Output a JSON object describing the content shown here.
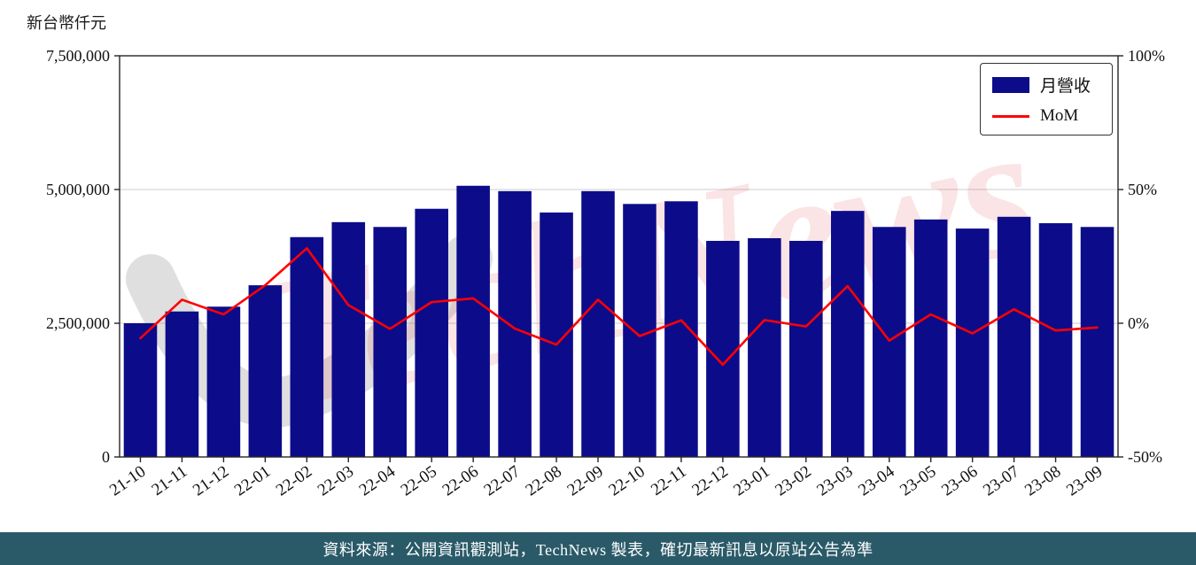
{
  "page": {
    "background": "#ffffff"
  },
  "footer": {
    "text": "資料來源：公開資訊觀測站，TechNews 製表，確切最新訊息以原站公告為準",
    "background": "#2a5a68",
    "text_color": "#ffffff"
  },
  "watermark": {
    "text": "TechNews",
    "text_color": "rgba(224,62,74,0.14)",
    "swoosh_color": "rgba(140,140,140,0.28)"
  },
  "legend": {
    "items": [
      {
        "label": "月營收",
        "swatch": "bar",
        "color": "#0c0c8a"
      },
      {
        "label": "MoM",
        "swatch": "line",
        "color": "#ff0000"
      }
    ]
  },
  "chart_data": {
    "type": "bar",
    "title": "",
    "categories": [
      "21-10",
      "21-11",
      "21-12",
      "22-01",
      "22-02",
      "22-03",
      "22-04",
      "22-05",
      "22-06",
      "22-07",
      "22-08",
      "22-09",
      "22-10",
      "22-11",
      "22-12",
      "23-01",
      "23-02",
      "23-03",
      "23-04",
      "23-05",
      "23-06",
      "23-07",
      "23-08",
      "23-09"
    ],
    "series": [
      {
        "name": "月營收",
        "type": "bar",
        "axis": "left",
        "color": "#0c0c8a",
        "values": [
          2500000,
          2720000,
          2810000,
          3210000,
          4110000,
          4390000,
          4300000,
          4640000,
          5070000,
          4970000,
          4570000,
          4970000,
          4730000,
          4780000,
          4040000,
          4090000,
          4040000,
          4600000,
          4300000,
          4440000,
          4270000,
          4490000,
          4370000,
          4300000
        ]
      },
      {
        "name": "MoM",
        "type": "line",
        "axis": "right",
        "color": "#ff0000",
        "values": [
          -5.6,
          8.8,
          3.3,
          14.2,
          28.0,
          6.8,
          -2.1,
          7.9,
          9.3,
          -2.0,
          -8.0,
          8.8,
          -4.8,
          1.1,
          -15.5,
          1.2,
          -1.2,
          13.9,
          -6.5,
          3.3,
          -3.8,
          5.2,
          -2.7,
          -1.6
        ]
      }
    ],
    "left_axis": {
      "label": "新台幣仟元",
      "range": [
        0,
        7500000
      ],
      "ticks": [
        0,
        2500000,
        5000000,
        7500000
      ],
      "tick_labels": [
        "0",
        "2,500,000",
        "5,000,000",
        "7,500,000"
      ]
    },
    "right_axis": {
      "range": [
        -50,
        100
      ],
      "ticks": [
        -50,
        0,
        50,
        100
      ],
      "tick_labels": [
        "-50%",
        "0%",
        "50%",
        "100%"
      ]
    },
    "grid": true,
    "legend_position": "upper right"
  }
}
